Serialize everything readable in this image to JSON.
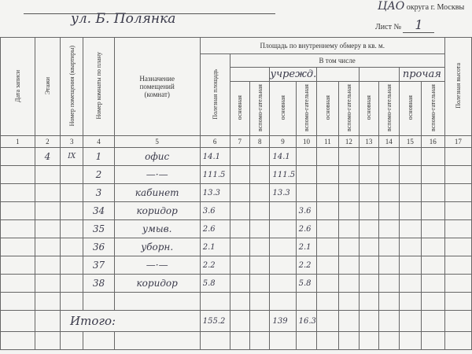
{
  "header": {
    "street": "ул. Б. Полянка",
    "district_hw": "ЦАО",
    "district_suffix": "округа г. Москвы",
    "sheet_label": "Лист №",
    "sheet_number": "1"
  },
  "table": {
    "columns": {
      "c1": "Дата записи",
      "c2": "Этажи",
      "c3": "Номер помещения (квартиры)",
      "c4": "Номер комнаты по плану",
      "c5": "Назначение помещений (комнат)",
      "c6": "Полезная площадь",
      "c17": "Полезная высота"
    },
    "area_title": "Площадь по внутреннему обмеру в кв. м.",
    "including": "В том числе",
    "group_hw_1": "учрежд.",
    "group_hw_2": "прочая",
    "sub_main": "основная",
    "sub_aux": "вспомо-гательная",
    "numbers": [
      "1",
      "2",
      "3",
      "4",
      "5",
      "6",
      "7",
      "8",
      "9",
      "10",
      "11",
      "12",
      "13",
      "14",
      "15",
      "16",
      "17"
    ],
    "rows": [
      {
        "floor": "4",
        "apt": "IX",
        "room": "1",
        "name": "офис",
        "area": "14.1",
        "c9": "14.1",
        "c10": ""
      },
      {
        "floor": "",
        "apt": "",
        "room": "2",
        "name": "—·—",
        "area": "111.5",
        "c9": "111.5",
        "c10": ""
      },
      {
        "floor": "",
        "apt": "",
        "room": "3",
        "name": "кабинет",
        "area": "13.3",
        "c9": "13.3",
        "c10": ""
      },
      {
        "floor": "",
        "apt": "",
        "room": "34",
        "name": "коридор",
        "area": "3.6",
        "c9": "",
        "c10": "3.6"
      },
      {
        "floor": "",
        "apt": "",
        "room": "35",
        "name": "умыв.",
        "area": "2.6",
        "c9": "",
        "c10": "2.6"
      },
      {
        "floor": "",
        "apt": "",
        "room": "36",
        "name": "уборн.",
        "area": "2.1",
        "c9": "",
        "c10": "2.1"
      },
      {
        "floor": "",
        "apt": "",
        "room": "37",
        "name": "—·—",
        "area": "2.2",
        "c9": "",
        "c10": "2.2"
      },
      {
        "floor": "",
        "apt": "",
        "room": "38",
        "name": "коридор",
        "area": "5.8",
        "c9": "",
        "c10": "5.8"
      },
      {
        "floor": "",
        "apt": "",
        "room": "",
        "name": "",
        "area": "",
        "c9": "",
        "c10": ""
      }
    ],
    "total_label": "Итого:",
    "total_area": "155.2",
    "total_c9": "139",
    "total_c10": "16.3"
  }
}
